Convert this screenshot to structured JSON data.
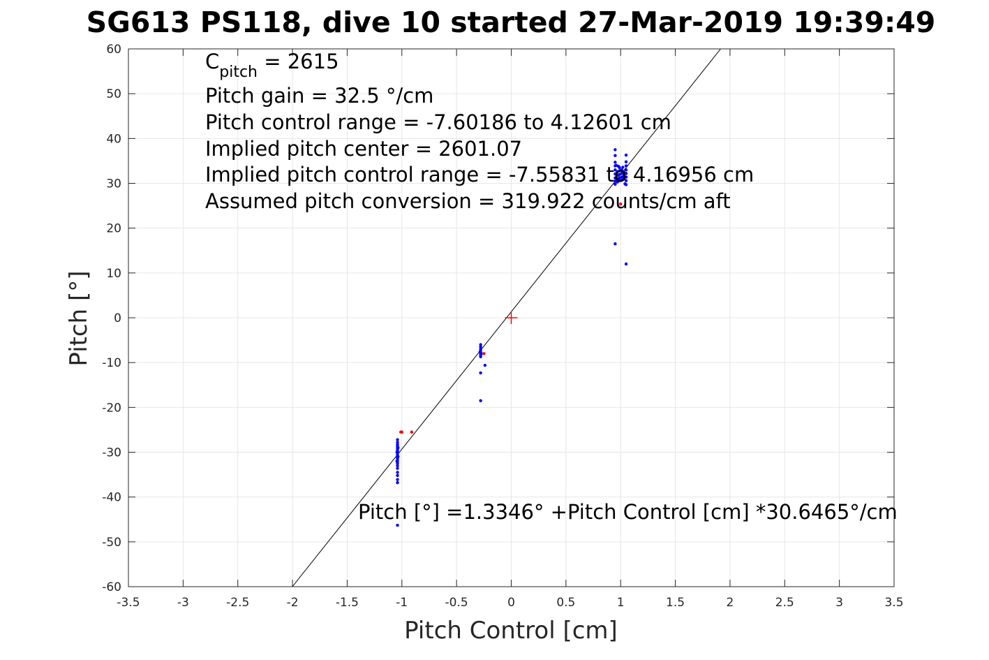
{
  "chart_data": {
    "type": "scatter",
    "title": "SG613 PS118, dive 10 started 27-Mar-2019 19:39:49",
    "xlabel": "Pitch Control [cm]",
    "ylabel": "Pitch [°]",
    "xlim": [
      -3.5,
      3.5
    ],
    "ylim": [
      -60,
      60
    ],
    "xticks": [
      -3.5,
      -3,
      -2.5,
      -2,
      -1.5,
      -1,
      -0.5,
      0,
      0.5,
      1,
      1.5,
      2,
      2.5,
      3,
      3.5
    ],
    "yticks": [
      -60,
      -50,
      -40,
      -30,
      -20,
      -10,
      0,
      10,
      20,
      30,
      40,
      50,
      60
    ],
    "xtick_labels": [
      "-3.5",
      "-3",
      "-2.5",
      "-2",
      "-1.5",
      "-1",
      "-0.5",
      "0",
      "0.5",
      "1",
      "1.5",
      "2",
      "2.5",
      "3",
      "3.5"
    ],
    "ytick_labels": [
      "-60",
      "-50",
      "-40",
      "-30",
      "-20",
      "-10",
      "0",
      "10",
      "20",
      "30",
      "40",
      "50",
      "60"
    ],
    "grid": true,
    "colors": {
      "good": "#0000ff",
      "bad": "#ff0000",
      "fit": "#000000",
      "center": "#ff0000"
    },
    "fit_line": {
      "intercept": 1.3346,
      "slope": 30.6465
    },
    "center_marker": [
      0,
      0
    ],
    "series": [
      {
        "points": [
          [
            -1.04,
            -27.2
          ],
          [
            -1.04,
            -27.8
          ],
          [
            -1.04,
            -28.3
          ],
          [
            -1.04,
            -28.7
          ],
          [
            -1.04,
            -29.1
          ],
          [
            -1.04,
            -29.5
          ],
          [
            -1.04,
            -29.9
          ],
          [
            -1.04,
            -30.2
          ],
          [
            -1.04,
            -30.6
          ],
          [
            -1.04,
            -31.0
          ],
          [
            -1.04,
            -31.3
          ],
          [
            -1.04,
            -31.7
          ],
          [
            -1.04,
            -32.1
          ],
          [
            -1.04,
            -32.5
          ],
          [
            -1.04,
            -33.0
          ],
          [
            -1.04,
            -33.6
          ],
          [
            -1.045,
            -30.0
          ],
          [
            -1.035,
            -31.0
          ],
          [
            -1.045,
            -32.0
          ],
          [
            -1.035,
            -29.0
          ],
          [
            -1.04,
            -34.5
          ],
          [
            -1.04,
            -35.2
          ],
          [
            -1.04,
            -36.1
          ],
          [
            -1.04,
            -36.8
          ],
          [
            -1.04,
            -46.3
          ],
          [
            -0.28,
            -6.0
          ],
          [
            -0.28,
            -6.5
          ],
          [
            -0.28,
            -7.0
          ],
          [
            -0.28,
            -7.4
          ],
          [
            -0.28,
            -7.8
          ],
          [
            -0.28,
            -8.1
          ],
          [
            -0.28,
            -8.4
          ],
          [
            -0.28,
            -8.7
          ],
          [
            -0.285,
            -7.6
          ],
          [
            -0.275,
            -8.0
          ],
          [
            -0.24,
            -10.6
          ],
          [
            -0.28,
            -12.3
          ],
          [
            -0.28,
            -18.5
          ],
          [
            0.95,
            37.5
          ],
          [
            0.95,
            36.2
          ],
          [
            0.95,
            34.7
          ],
          [
            0.95,
            33.9
          ],
          [
            0.95,
            33.0
          ],
          [
            0.95,
            32.1
          ],
          [
            0.95,
            31.2
          ],
          [
            0.95,
            30.5
          ],
          [
            0.95,
            29.8
          ],
          [
            0.97,
            32.6
          ],
          [
            0.97,
            31.8
          ],
          [
            0.97,
            31.0
          ],
          [
            0.97,
            30.3
          ],
          [
            0.99,
            33.5
          ],
          [
            0.99,
            32.8
          ],
          [
            0.99,
            32.0
          ],
          [
            0.99,
            31.2
          ],
          [
            0.99,
            30.6
          ],
          [
            1.01,
            33.0
          ],
          [
            1.01,
            32.2
          ],
          [
            1.01,
            31.4
          ],
          [
            1.01,
            30.7
          ],
          [
            1.03,
            32.5
          ],
          [
            1.03,
            31.7
          ],
          [
            1.03,
            31.0
          ],
          [
            1.05,
            36.3
          ],
          [
            1.05,
            34.8
          ],
          [
            1.05,
            33.9
          ],
          [
            1.05,
            33.0
          ],
          [
            1.05,
            32.2
          ],
          [
            1.05,
            31.4
          ],
          [
            1.05,
            30.6
          ],
          [
            1.05,
            29.7
          ],
          [
            0.96,
            34.0
          ],
          [
            0.98,
            33.8
          ],
          [
            1.02,
            33.6
          ],
          [
            1.04,
            29.9
          ],
          [
            0.95,
            16.5
          ],
          [
            1.05,
            12.0
          ]
        ]
      },
      {
        "points": [
          [
            -1.01,
            -25.5
          ],
          [
            -1.0,
            -25.5
          ],
          [
            -0.91,
            -25.5
          ],
          [
            -0.25,
            -8.0
          ],
          [
            1.0,
            25.4
          ]
        ]
      }
    ],
    "annotations": [
      {
        "main": "C",
        "sub": "pitch",
        "rest": " = 2615"
      },
      {
        "text": "Pitch gain = 32.5 °/cm"
      },
      {
        "text": "Pitch control range = -7.60186 to 4.12601 cm"
      },
      {
        "text": "Implied pitch center = 2601.07"
      },
      {
        "text": "Implied pitch control range = -7.55831 to 4.16956 cm"
      },
      {
        "text": "Assumed pitch conversion = 319.922 counts/cm aft"
      },
      {
        "text": "Pitch [°] =1.3346° +Pitch Control [cm] *30.6465°/cm"
      }
    ]
  }
}
